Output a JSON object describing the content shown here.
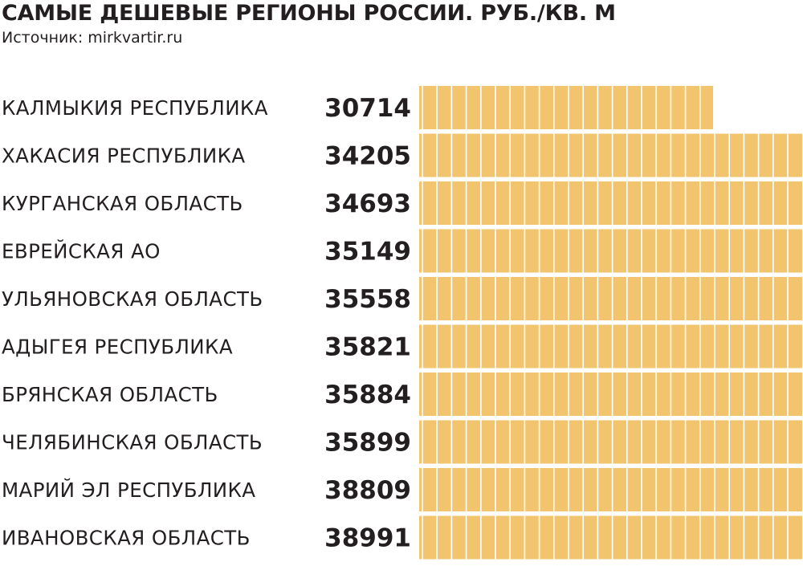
{
  "chart_data": {
    "type": "bar",
    "orientation": "horizontal",
    "title": "САМЫЕ ДЕШЕВЫЕ РЕГИОНЫ РОССИИ. РУБ./КВ. М",
    "source": "Источник: mirkvartir.ru",
    "categories": [
      "КАЛМЫКИЯ РЕСПУБЛИКА",
      "ХАКАСИЯ РЕСПУБЛИКА",
      "КУРГАНСКАЯ ОБЛАСТЬ",
      "ЕВРЕЙСКАЯ АО",
      "УЛЬЯНОВСКАЯ ОБЛАСТЬ",
      "АДЫГЕЯ РЕСПУБЛИКА",
      "БРЯНСКАЯ ОБЛАСТЬ",
      "ЧЕЛЯБИНСКАЯ ОБЛАСТЬ",
      "МАРИЙ ЭЛ РЕСПУБЛИКА",
      "ИВАНОВСКАЯ ОБЛАСТЬ"
    ],
    "values": [
      30714,
      34205,
      34693,
      35149,
      35558,
      35821,
      35884,
      35899,
      38809,
      38991
    ],
    "value_labels": [
      "30714",
      "34205",
      "34693",
      "35149",
      "35558",
      "35821",
      "35884",
      "35899",
      "38809",
      "38991"
    ],
    "bar_color": "#f2c46d",
    "segment_line_color": "#ffffff",
    "grid": false,
    "legend": "none"
  }
}
